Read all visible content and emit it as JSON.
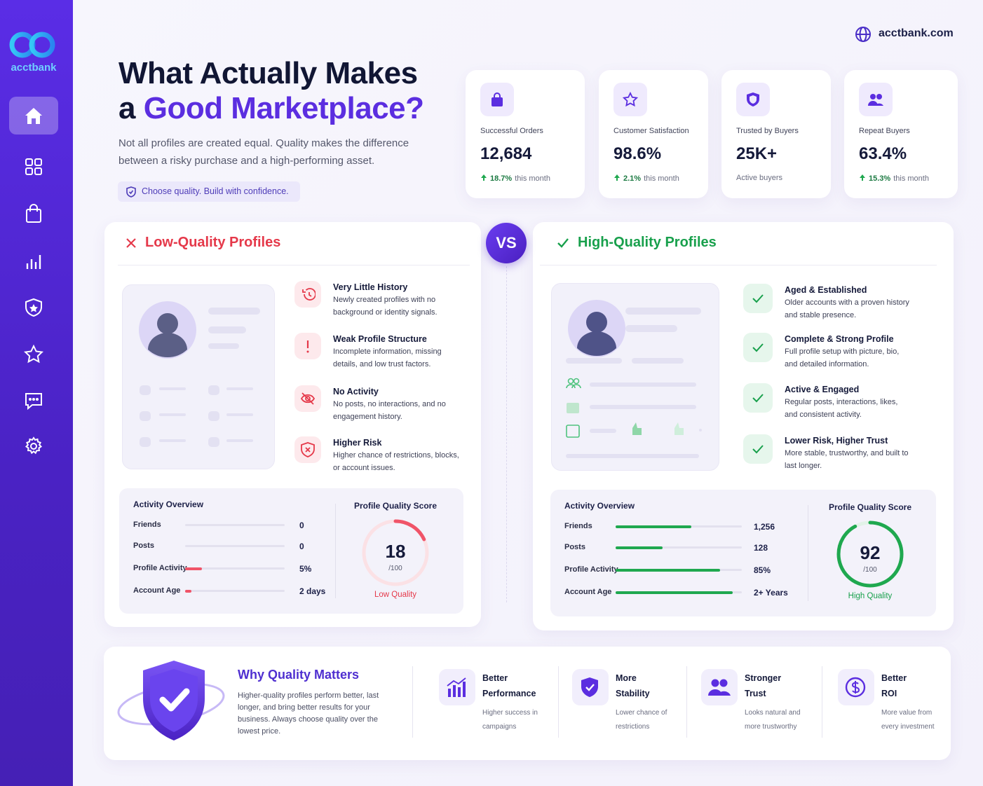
{
  "brand": {
    "name": "acctbank"
  },
  "site": "acctbank.com",
  "header": {
    "title_line1": "What Actually Makes",
    "title_prefix": "a",
    "title_highlight": "Good Marketplace?",
    "subtitle": "Not all profiles are created equal. Quality makes the difference between a risky purchase and a high-performing asset.",
    "tagline": "Choose quality. Build with confidence."
  },
  "stats": [
    {
      "label": "Successful Orders",
      "value": "12,684",
      "change": "18.7%",
      "note": "this month"
    },
    {
      "label": "Customer Satisfaction",
      "value": "98.6%",
      "change": "2.1%",
      "note": "this month"
    },
    {
      "label": "Trusted by Buyers",
      "value": "25K+",
      "note": "Active buyers"
    },
    {
      "label": "Repeat Buyers",
      "value": "63.4%",
      "change": "15.3%",
      "note": "this month"
    }
  ],
  "vs": "VS",
  "low": {
    "title": "Low-Quality Profiles",
    "points": [
      {
        "title": "Very Little History",
        "text": "Newly created profiles with no background or identity signals."
      },
      {
        "title": "Weak Profile Structure",
        "text": "Incomplete information, missing details, and low trust factors."
      },
      {
        "title": "No Activity",
        "text": "No posts, no interactions, and no engagement history."
      },
      {
        "title": "Higher Risk",
        "text": "Higher chance of restrictions, blocks, or account issues."
      }
    ],
    "activity": {
      "title": "Activity Overview",
      "rows": [
        {
          "label": "Friends",
          "value": "0"
        },
        {
          "label": "Posts",
          "value": "0"
        },
        {
          "label": "Profile Activity",
          "value": "5%"
        },
        {
          "label": "Account Age",
          "value": "2 days"
        }
      ]
    },
    "score": {
      "title": "Profile Quality Score",
      "value": 18,
      "max": {
        "value": 100,
        "label": "/100"
      },
      "label": "Low Quality"
    }
  },
  "high": {
    "title": "High-Quality Profiles",
    "points": [
      {
        "title": "Aged & Established",
        "text": "Older accounts with a proven history and stable presence."
      },
      {
        "title": "Complete & Strong Profile",
        "text": "Full profile setup with picture, bio, and detailed information."
      },
      {
        "title": "Active & Engaged",
        "text": "Regular posts, interactions, likes, and consistent activity."
      },
      {
        "title": "Lower Risk, Higher Trust",
        "text": "More stable, trustworthy, and built to last longer."
      }
    ],
    "activity": {
      "title": "Activity Overview",
      "rows": [
        {
          "label": "Friends",
          "value": "1,256"
        },
        {
          "label": "Posts",
          "value": "128"
        },
        {
          "label": "Profile Activity",
          "value": "85%"
        },
        {
          "label": "Account Age",
          "value": "2+ Years"
        }
      ]
    },
    "score": {
      "title": "Profile Quality Score",
      "value": 92,
      "max": {
        "value": 100,
        "label": "/100"
      },
      "label": "High Quality"
    }
  },
  "why": {
    "title": "Why Quality Matters",
    "text": "Higher-quality profiles perform better, last longer, and bring better results for your business. Always choose quality over the lowest price.",
    "benefits": [
      {
        "title": "Better Performance",
        "text": "Higher success in campaigns"
      },
      {
        "title": "More Stability",
        "text": "Lower chance of restrictions"
      },
      {
        "title": "Stronger Trust",
        "text": "Looks natural and more trustworthy"
      },
      {
        "title": "Better ROI",
        "text": "More value from every investment"
      }
    ]
  }
}
